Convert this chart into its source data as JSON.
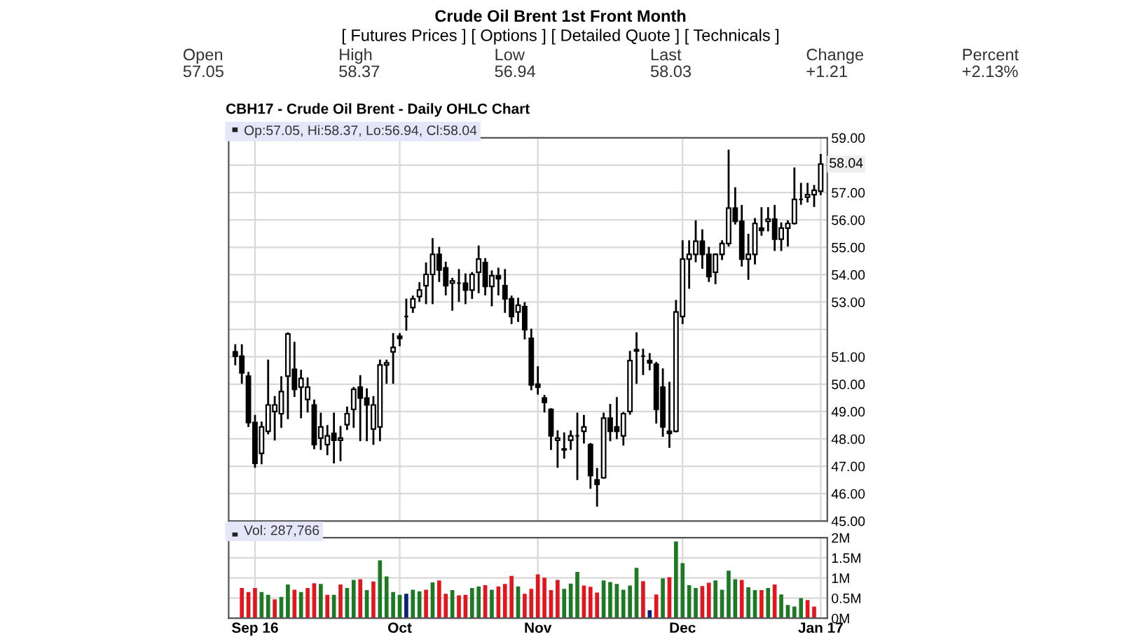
{
  "chart_data": [
    {
      "type": "other",
      "title": "Crude Oil Brent 1st Front Month",
      "subtitle": "[ Futures Prices ] [ Options ] [ Detailed Quote ] [ Technicals ]",
      "annotations": [
        "Open",
        "57.05",
        "High",
        "58.37",
        "Low",
        "56.94",
        "Last",
        "58.03",
        "Change",
        "+1.21",
        "Percent",
        "+2.13%"
      ]
    },
    {
      "type": "candlestick",
      "title": "CBH17 - Crude Oil Brent - Daily OHLC Chart",
      "color": "#000000",
      "categories": [
        null,
        null,
        null,
        null,
        null,
        null,
        null,
        null,
        null,
        null,
        null,
        null,
        null,
        null,
        null,
        null,
        null,
        null,
        null,
        null,
        null,
        null,
        null,
        null,
        null,
        null,
        null,
        null,
        null,
        null,
        null,
        null,
        null,
        null,
        null,
        null,
        null,
        null,
        null,
        null,
        null,
        null,
        null,
        null,
        null,
        null,
        null,
        null,
        null,
        null,
        null,
        null,
        null,
        null,
        null,
        null,
        null,
        null,
        null,
        null,
        null,
        null,
        null,
        null,
        null,
        null,
        null,
        null,
        null,
        null,
        null,
        null,
        null,
        null,
        null,
        null,
        null,
        null,
        null,
        null,
        null,
        null,
        null,
        null,
        null,
        null,
        null,
        null,
        null,
        null
      ],
      "ohlc": [
        [
          51.18,
          51.42,
          50.73,
          51.02
        ],
        [
          51.02,
          51.42,
          50.05,
          50.41
        ],
        [
          50.29,
          50.41,
          48.47,
          48.6
        ],
        [
          48.6,
          48.84,
          46.98,
          47.11
        ],
        [
          47.47,
          48.6,
          47.11,
          48.44
        ],
        [
          48.28,
          50.86,
          48.2,
          49.24
        ],
        [
          49.0,
          49.53,
          47.98,
          49.24
        ],
        [
          48.92,
          50.25,
          48.44,
          49.73
        ],
        [
          50.29,
          51.86,
          48.76,
          51.83
        ],
        [
          50.54,
          51.51,
          49.57,
          49.81
        ],
        [
          49.89,
          50.49,
          48.79,
          50.21
        ],
        [
          49.44,
          50.21,
          49.0,
          49.89
        ],
        [
          49.24,
          49.4,
          47.66,
          47.79
        ],
        [
          48.03,
          48.92,
          47.63,
          48.44
        ],
        [
          47.79,
          48.47,
          47.44,
          48.11
        ],
        [
          48.2,
          48.92,
          47.14,
          47.95
        ],
        [
          47.95,
          48.44,
          47.22,
          48.03
        ],
        [
          48.52,
          49.15,
          48.36,
          48.92
        ],
        [
          49.08,
          49.86,
          48.44,
          49.81
        ],
        [
          49.89,
          50.29,
          47.95,
          49.49
        ],
        [
          49.49,
          49.81,
          47.95,
          49.24
        ],
        [
          48.36,
          49.53,
          47.82,
          49.24
        ],
        [
          48.44,
          50.86,
          47.95,
          50.7
        ],
        [
          50.7,
          50.86,
          50.05,
          50.78
        ],
        [
          51.18,
          51.83,
          50.05,
          51.34
        ],
        [
          51.75,
          51.83,
          51.42,
          51.67
        ],
        [
          52.47,
          53.09,
          51.99,
          52.47
        ],
        [
          52.8,
          53.2,
          52.64,
          53.12
        ],
        [
          53.2,
          53.69,
          53.04,
          53.44
        ],
        [
          53.6,
          54.41,
          52.96,
          54.01
        ],
        [
          54.01,
          55.3,
          52.96,
          54.74
        ],
        [
          54.74,
          54.98,
          53.77,
          54.17
        ],
        [
          54.25,
          54.44,
          53.28,
          53.6
        ],
        [
          53.69,
          53.85,
          52.72,
          53.77
        ],
        [
          53.69,
          54.17,
          53.04,
          53.69
        ],
        [
          53.69,
          54.01,
          52.96,
          53.44
        ],
        [
          53.44,
          54.06,
          53.15,
          54.01
        ],
        [
          54.09,
          55.03,
          53.36,
          54.57
        ],
        [
          54.44,
          54.57,
          53.28,
          53.57
        ],
        [
          53.57,
          54.12,
          52.88,
          53.96
        ],
        [
          53.96,
          54.22,
          53.28,
          53.85
        ],
        [
          53.6,
          54.17,
          52.64,
          53.12
        ],
        [
          53.12,
          53.2,
          52.23,
          52.47
        ],
        [
          52.64,
          53.12,
          52.31,
          52.88
        ],
        [
          52.83,
          52.96,
          51.67,
          51.99
        ],
        [
          51.67,
          51.99,
          49.81,
          49.97
        ],
        [
          50.0,
          50.62,
          49.65,
          49.89
        ],
        [
          49.49,
          49.57,
          49.0,
          49.33
        ],
        [
          49.08,
          49.08,
          47.63,
          48.11
        ],
        [
          47.95,
          48.28,
          46.98,
          48.03
        ],
        [
          47.63,
          48.2,
          47.31,
          47.6
        ],
        [
          47.95,
          48.28,
          47.63,
          48.11
        ],
        [
          48.11,
          48.92,
          46.53,
          48.11
        ],
        [
          48.28,
          48.84,
          47.87,
          48.44
        ],
        [
          47.79,
          47.82,
          46.21,
          46.66
        ],
        [
          46.5,
          46.9,
          45.56,
          46.34
        ],
        [
          46.58,
          48.92,
          46.58,
          48.76
        ],
        [
          48.76,
          49.24,
          47.95,
          48.28
        ],
        [
          48.44,
          49.49,
          48.03,
          48.28
        ],
        [
          48.11,
          48.95,
          47.79,
          48.92
        ],
        [
          49.0,
          51.18,
          48.92,
          50.86
        ],
        [
          51.26,
          51.86,
          50.05,
          51.21
        ],
        [
          51.02,
          51.26,
          50.37,
          51.02
        ],
        [
          50.86,
          51.1,
          50.54,
          50.78
        ],
        [
          50.73,
          50.78,
          48.6,
          49.08
        ],
        [
          49.89,
          50.54,
          48.11,
          48.44
        ],
        [
          48.28,
          50.05,
          47.71,
          48.2
        ],
        [
          48.28,
          53.04,
          48.28,
          52.64
        ],
        [
          52.47,
          55.22,
          52.23,
          54.57
        ],
        [
          54.57,
          55.22,
          53.52,
          54.74
        ],
        [
          54.74,
          55.95,
          54.49,
          55.22
        ],
        [
          55.22,
          55.62,
          54.25,
          54.74
        ],
        [
          54.74,
          54.98,
          53.77,
          53.93
        ],
        [
          54.09,
          54.74,
          53.69,
          54.74
        ],
        [
          54.74,
          55.22,
          54.57,
          55.14
        ],
        [
          55.14,
          58.53,
          55.06,
          56.43
        ],
        [
          56.43,
          57.16,
          55.87,
          55.95
        ],
        [
          55.95,
          56.51,
          54.33,
          54.57
        ],
        [
          54.57,
          55.46,
          53.85,
          54.74
        ],
        [
          54.74,
          56.03,
          54.41,
          55.87
        ],
        [
          55.7,
          56.43,
          55.46,
          55.62
        ],
        [
          55.95,
          56.43,
          55.62,
          56.03
        ],
        [
          56.03,
          56.51,
          54.9,
          55.3
        ],
        [
          55.3,
          55.87,
          54.9,
          55.7
        ],
        [
          55.7,
          55.95,
          55.06,
          55.87
        ],
        [
          55.87,
          57.88,
          55.87,
          56.75
        ],
        [
          56.75,
          57.32,
          56.59,
          56.75
        ],
        [
          56.83,
          57.32,
          56.67,
          56.92
        ],
        [
          56.92,
          57.24,
          56.51,
          57.08
        ],
        [
          57.05,
          58.37,
          56.94,
          58.04
        ]
      ],
      "ylim": [
        45,
        59
      ],
      "yticks": [
        {
          "value": 45,
          "label": "45.00"
        },
        {
          "value": 46,
          "label": "46.00"
        },
        {
          "value": 47,
          "label": "47.00"
        },
        {
          "value": 48,
          "label": "48.00"
        },
        {
          "value": 49,
          "label": "49.00"
        },
        {
          "value": 50,
          "label": "50.00"
        },
        {
          "value": 51,
          "label": "51.00"
        },
        {
          "value": 52,
          "label": null
        },
        {
          "value": 53,
          "label": "53.00"
        },
        {
          "value": 54,
          "label": "54.00"
        },
        {
          "value": 55,
          "label": "55.00"
        },
        {
          "value": 56,
          "label": "56.00"
        },
        {
          "value": 57,
          "label": "57.00"
        },
        {
          "value": 58,
          "label": null
        },
        {
          "value": 59,
          "label": "59.00"
        }
      ],
      "grid": true,
      "tick_labels": "y",
      "annotations": [
        "Op:57.05, Hi:58.37, Lo:56.94, Cl:58.04",
        {
          "text": "58.04",
          "y": 58.04
        }
      ]
    },
    {
      "type": "bar",
      "categories": [
        null,
        null,
        null,
        "Sep 16",
        null,
        null,
        null,
        null,
        null,
        null,
        null,
        null,
        null,
        null,
        null,
        null,
        null,
        null,
        null,
        null,
        null,
        null,
        null,
        null,
        null,
        "Oct",
        null,
        null,
        null,
        null,
        null,
        null,
        null,
        null,
        null,
        null,
        null,
        null,
        null,
        null,
        null,
        null,
        null,
        null,
        null,
        null,
        "Nov",
        null,
        null,
        null,
        null,
        null,
        null,
        null,
        null,
        null,
        null,
        null,
        null,
        null,
        null,
        null,
        null,
        null,
        null,
        null,
        null,
        null,
        "Dec",
        null,
        null,
        null,
        null,
        null,
        null,
        null,
        null,
        null,
        null,
        null,
        null,
        null,
        null,
        null,
        null,
        null,
        null,
        null,
        null,
        "Jan 17"
      ],
      "values": [
        null,
        0.75,
        0.65,
        0.75,
        0.65,
        0.58,
        0.47,
        0.53,
        0.84,
        0.71,
        0.65,
        0.75,
        0.87,
        0.85,
        0.58,
        0.58,
        0.84,
        0.75,
        0.95,
        0.97,
        0.7,
        0.91,
        1.44,
        1.04,
        0.65,
        0.58,
        0.61,
        0.71,
        0.67,
        0.71,
        0.89,
        0.94,
        0.61,
        0.7,
        0.57,
        0.58,
        0.75,
        0.79,
        0.82,
        0.71,
        0.79,
        0.85,
        1.05,
        0.79,
        0.61,
        0.73,
        1.09,
        1.01,
        0.7,
        0.95,
        0.73,
        0.86,
        1.15,
        0.81,
        0.78,
        0.64,
        0.94,
        0.9,
        0.85,
        0.71,
        0.81,
        1.25,
        0.92,
        0.2,
        0.59,
        0.99,
        1.02,
        1.91,
        1.37,
        0.82,
        0.75,
        0.8,
        0.88,
        0.94,
        0.71,
        1.18,
        0.97,
        0.95,
        0.77,
        0.7,
        0.7,
        0.75,
        0.84,
        0.59,
        0.33,
        0.29,
        0.5,
        0.45,
        0.29,
        null
      ],
      "colors": [
        "#e3161d",
        "#e3161d",
        "#e3161d",
        "#e3161d",
        "#1b7a23",
        "#1b7a23",
        "#e3161d",
        "#1b7a23",
        "#1b7a23",
        "#e3161d",
        "#1b7a23",
        "#e3161d",
        "#e3161d",
        "#1b7a23",
        "#e3161d",
        "#1b7a23",
        "#e3161d",
        "#1b7a23",
        "#1b7a23",
        "#e3161d",
        "#1b7a23",
        "#e3161d",
        "#1b7a23",
        "#1b7a23",
        "#1b7a23",
        "#1b7a23",
        "#0b1f7a",
        "#1b7a23",
        "#1b7a23",
        "#e3161d",
        "#1b7a23",
        "#e3161d",
        "#e3161d",
        "#1b7a23",
        "#e3161d",
        "#e3161d",
        "#1b7a23",
        "#1b7a23",
        "#e3161d",
        "#1b7a23",
        "#e3161d",
        "#e3161d",
        "#e3161d",
        "#1b7a23",
        "#e3161d",
        "#e3161d",
        "#e3161d",
        "#e3161d",
        "#e3161d",
        "#e3161d",
        "#1b7a23",
        "#1b7a23",
        "#1b7a23",
        "#e3161d",
        "#e3161d",
        "#e3161d",
        "#1b7a23",
        "#1b7a23",
        "#1b7a23",
        "#1b7a23",
        "#1b7a23",
        "#1b7a23",
        "#e3161d",
        "#0b1f7a",
        "#e3161d",
        "#1b7a23",
        "#e3161d",
        "#1b7a23",
        "#1b7a23",
        "#1b7a23",
        "#1b7a23",
        "#e3161d",
        "#e3161d",
        "#1b7a23",
        "#1b7a23",
        "#1b7a23",
        "#1b7a23",
        "#e3161d",
        "#1b7a23",
        "#1b7a23",
        "#e3161d",
        "#1b7a23",
        "#e3161d",
        "#1b7a23",
        "#1b7a23",
        "#1b7a23",
        "#1b7a23",
        "#e3161d",
        "#e3161d",
        "#e3161d"
      ],
      "ylim": [
        0,
        2
      ],
      "yticks": [
        {
          "value": 0,
          "label": "0M"
        },
        {
          "value": 0.5,
          "label": "0.5M"
        },
        {
          "value": 1,
          "label": "1M"
        },
        {
          "value": 1.5,
          "label": "1.5M"
        },
        {
          "value": 2,
          "label": "2M"
        }
      ],
      "grid": true,
      "annotations": [
        "Vol: 287,766"
      ]
    }
  ]
}
